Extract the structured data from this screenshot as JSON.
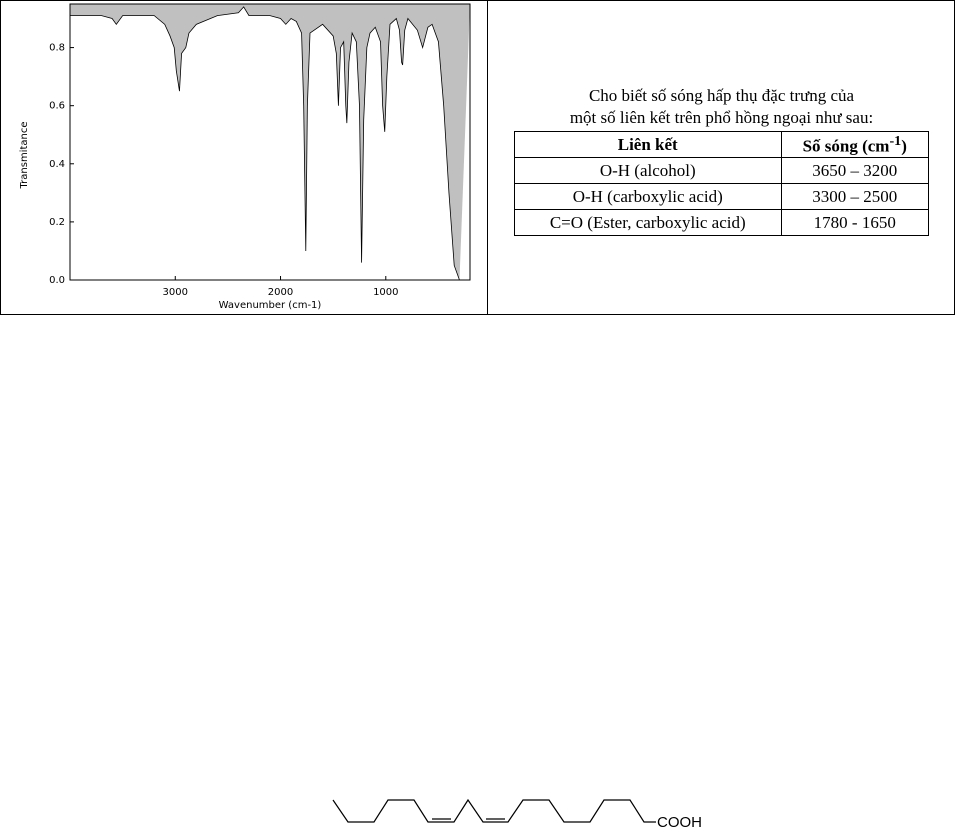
{
  "chart_data": {
    "type": "line",
    "xlabel": "Wavenumber (cm-1)",
    "ylabel": "Transmitance",
    "x": [
      4000,
      3700,
      3600,
      3560,
      3500,
      3200,
      3100,
      3050,
      3010,
      2990,
      2960,
      2940,
      2900,
      2870,
      2800,
      2600,
      2400,
      2350,
      2300,
      2100,
      2000,
      1950,
      1900,
      1850,
      1800,
      1780,
      1760,
      1745,
      1720,
      1600,
      1500,
      1470,
      1450,
      1430,
      1400,
      1380,
      1370,
      1350,
      1320,
      1280,
      1250,
      1230,
      1210,
      1180,
      1150,
      1100,
      1050,
      1030,
      1010,
      990,
      960,
      900,
      870,
      850,
      840,
      820,
      790,
      700,
      650,
      600,
      560,
      500,
      450,
      400,
      350,
      300
    ],
    "values": [
      0.91,
      0.91,
      0.9,
      0.88,
      0.91,
      0.91,
      0.88,
      0.84,
      0.8,
      0.72,
      0.65,
      0.78,
      0.8,
      0.85,
      0.88,
      0.91,
      0.92,
      0.94,
      0.91,
      0.91,
      0.9,
      0.88,
      0.9,
      0.89,
      0.85,
      0.6,
      0.1,
      0.6,
      0.85,
      0.88,
      0.84,
      0.78,
      0.6,
      0.8,
      0.82,
      0.6,
      0.54,
      0.75,
      0.85,
      0.82,
      0.6,
      0.06,
      0.55,
      0.8,
      0.85,
      0.87,
      0.82,
      0.6,
      0.51,
      0.7,
      0.88,
      0.9,
      0.86,
      0.75,
      0.74,
      0.86,
      0.9,
      0.86,
      0.8,
      0.87,
      0.88,
      0.82,
      0.6,
      0.3,
      0.05,
      0
    ],
    "color": "#000000",
    "fill": "#c0c0c0",
    "xlim": [
      4000,
      200
    ],
    "ylim": [
      0,
      0.95
    ],
    "xticks": [
      3000,
      2000,
      1000
    ],
    "yticks": [
      {
        "value": 0,
        "label": "0.0"
      },
      0.2,
      0.4,
      0.6,
      0.8
    ]
  },
  "table": {
    "caption": [
      "Cho biết số sóng hấp thụ đặc trưng của",
      "một số liên kết trên phổ hồng ngoại như sau:"
    ],
    "header": [
      "Liên kết",
      [
        "Số sóng (cm",
        "-1",
        ")"
      ]
    ],
    "rows": [
      [
        "O-H (alcohol)",
        "3650 – 3200"
      ],
      [
        "O-H (carboxylic acid)",
        "3300 – 2500"
      ],
      [
        "C=O (Ester, carboxylic acid)",
        "1780 - 1650"
      ]
    ]
  },
  "structure": {
    "label": "COOH"
  }
}
